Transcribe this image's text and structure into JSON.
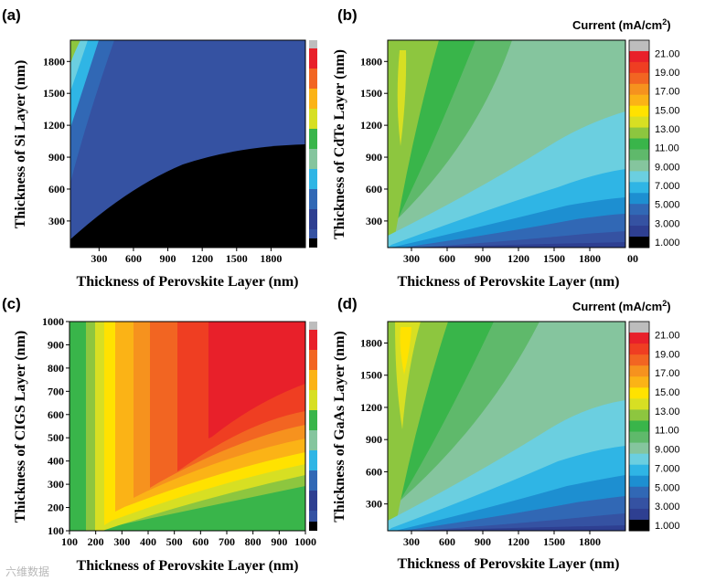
{
  "chart_data": [
    {
      "panel": "(a)",
      "type": "heatmap",
      "subtype": "filled-contour",
      "xlabel": "Thickness of Perovskite Layer (nm)",
      "ylabel": "Thickness of Si Layer (nm)",
      "xlim": [
        50,
        2100
      ],
      "ylim": [
        50,
        2000
      ],
      "xticks": [
        "300",
        "600",
        "900",
        "1200",
        "1500",
        "1800"
      ],
      "yticks": [
        "300",
        "600",
        "900",
        "1200",
        "1500",
        "1800"
      ],
      "description_values": {
        "background_level_mA_cm2": 2.5,
        "dark_region_level_mA_cm2": 0.5,
        "boundary_y_at_x": [
          [
            50,
            50
          ],
          [
            300,
            320
          ],
          [
            600,
            560
          ],
          [
            900,
            760
          ],
          [
            1200,
            890
          ],
          [
            1500,
            960
          ],
          [
            1800,
            1000
          ],
          [
            2100,
            1020
          ]
        ]
      }
    },
    {
      "panel": "(b)",
      "type": "heatmap",
      "subtype": "filled-contour",
      "xlabel": "Thickness of Perovskite Layer (nm)",
      "ylabel": "Thickness of CdTe Layer (nm)",
      "xlim": [
        100,
        2100
      ],
      "ylim": [
        50,
        2000
      ],
      "xticks": [
        "300",
        "600",
        "900",
        "1200",
        "1500",
        "1800",
        "00"
      ],
      "yticks": [
        "300",
        "600",
        "900",
        "1200",
        "1500",
        "1800"
      ]
    },
    {
      "panel": "(c)",
      "type": "heatmap",
      "subtype": "filled-contour",
      "xlabel": "Thickness of Perovskite Layer (nm)",
      "ylabel": "Thickness of CIGS Layer (nm)",
      "xlim": [
        100,
        1000
      ],
      "ylim": [
        100,
        1000
      ],
      "xticks": [
        "100",
        "200",
        "300",
        "400",
        "500",
        "600",
        "700",
        "800",
        "900",
        "1000"
      ],
      "yticks": [
        "100",
        "200",
        "300",
        "400",
        "500",
        "600",
        "700",
        "800",
        "900",
        "1000"
      ]
    },
    {
      "panel": "(d)",
      "type": "heatmap",
      "subtype": "filled-contour",
      "xlabel": "Thickness of Perovskite Layer (nm)",
      "ylabel": "Thickness of GaAs Layer (nm)",
      "xlim": [
        100,
        2100
      ],
      "ylim": [
        50,
        2000
      ],
      "xticks": [
        "300",
        "600",
        "900",
        "1200",
        "1500",
        "1800"
      ],
      "yticks": [
        "300",
        "600",
        "900",
        "1200",
        "1500",
        "1800"
      ]
    }
  ],
  "colorbar": {
    "title": "Current (mA/cm",
    "title_sup": "2",
    "title_end": ")",
    "labels": [
      "21.00",
      "19.00",
      "17.00",
      "15.00",
      "13.00",
      "11.00",
      "9.000",
      "7.000",
      "5.000",
      "3.000",
      "1.000"
    ],
    "levels_top_to_bottom": [
      "#bdbdbd",
      "#e8202a",
      "#ef3e22",
      "#f26522",
      "#f6921e",
      "#fbb316",
      "#ffe200",
      "#d7df23",
      "#8dc63f",
      "#39b54a",
      "#5fb96b",
      "#85c59e",
      "#6bcfe0",
      "#2fb5e5",
      "#1d8fd1",
      "#3168b5",
      "#3552a2",
      "#2e3f91",
      "#000000"
    ]
  },
  "watermark": "六维数据"
}
